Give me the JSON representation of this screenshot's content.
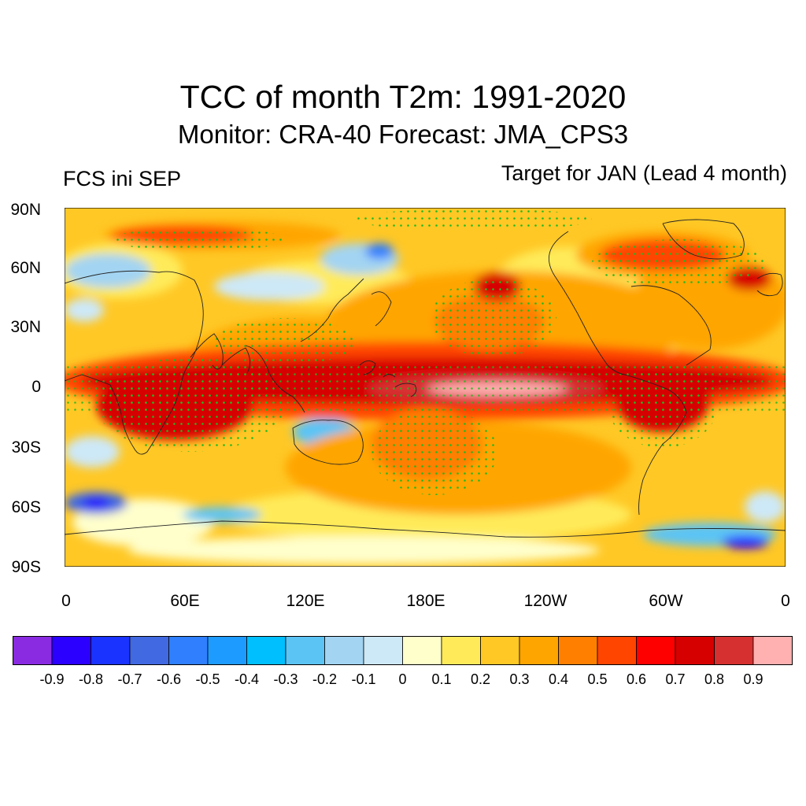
{
  "title": "TCC of month T2m: 1991-2020",
  "subtitle": "Monitor: CRA-40   Forecast: JMA_CPS3",
  "left_label": "FCS ini SEP",
  "right_label": "Target for JAN (Lead 4 month)",
  "lat_labels": [
    "90N",
    "60N",
    "30N",
    "0",
    "30S",
    "60S",
    "90S"
  ],
  "lon_labels": [
    "0",
    "60E",
    "120E",
    "180E",
    "120W",
    "60W",
    "0"
  ],
  "colorbar": {
    "colors": [
      "#8a2be2",
      "#2b00ff",
      "#1a33ff",
      "#4169e1",
      "#2f7fff",
      "#1e9bff",
      "#00bfff",
      "#5bc4f5",
      "#a3d4f2",
      "#cde8f7",
      "#ffffcc",
      "#ffeb5a",
      "#ffc825",
      "#ffa500",
      "#ff7f00",
      "#ff4500",
      "#ff0000",
      "#d70000",
      "#d63030",
      "#ffb0b0"
    ],
    "labels": [
      "-0.9",
      "-0.8",
      "-0.7",
      "-0.6",
      "-0.5",
      "-0.4",
      "-0.3",
      "-0.2",
      "-0.1",
      "0",
      "0.1",
      "0.2",
      "0.3",
      "0.4",
      "0.5",
      "0.6",
      "0.7",
      "0.8",
      "0.9"
    ]
  }
}
